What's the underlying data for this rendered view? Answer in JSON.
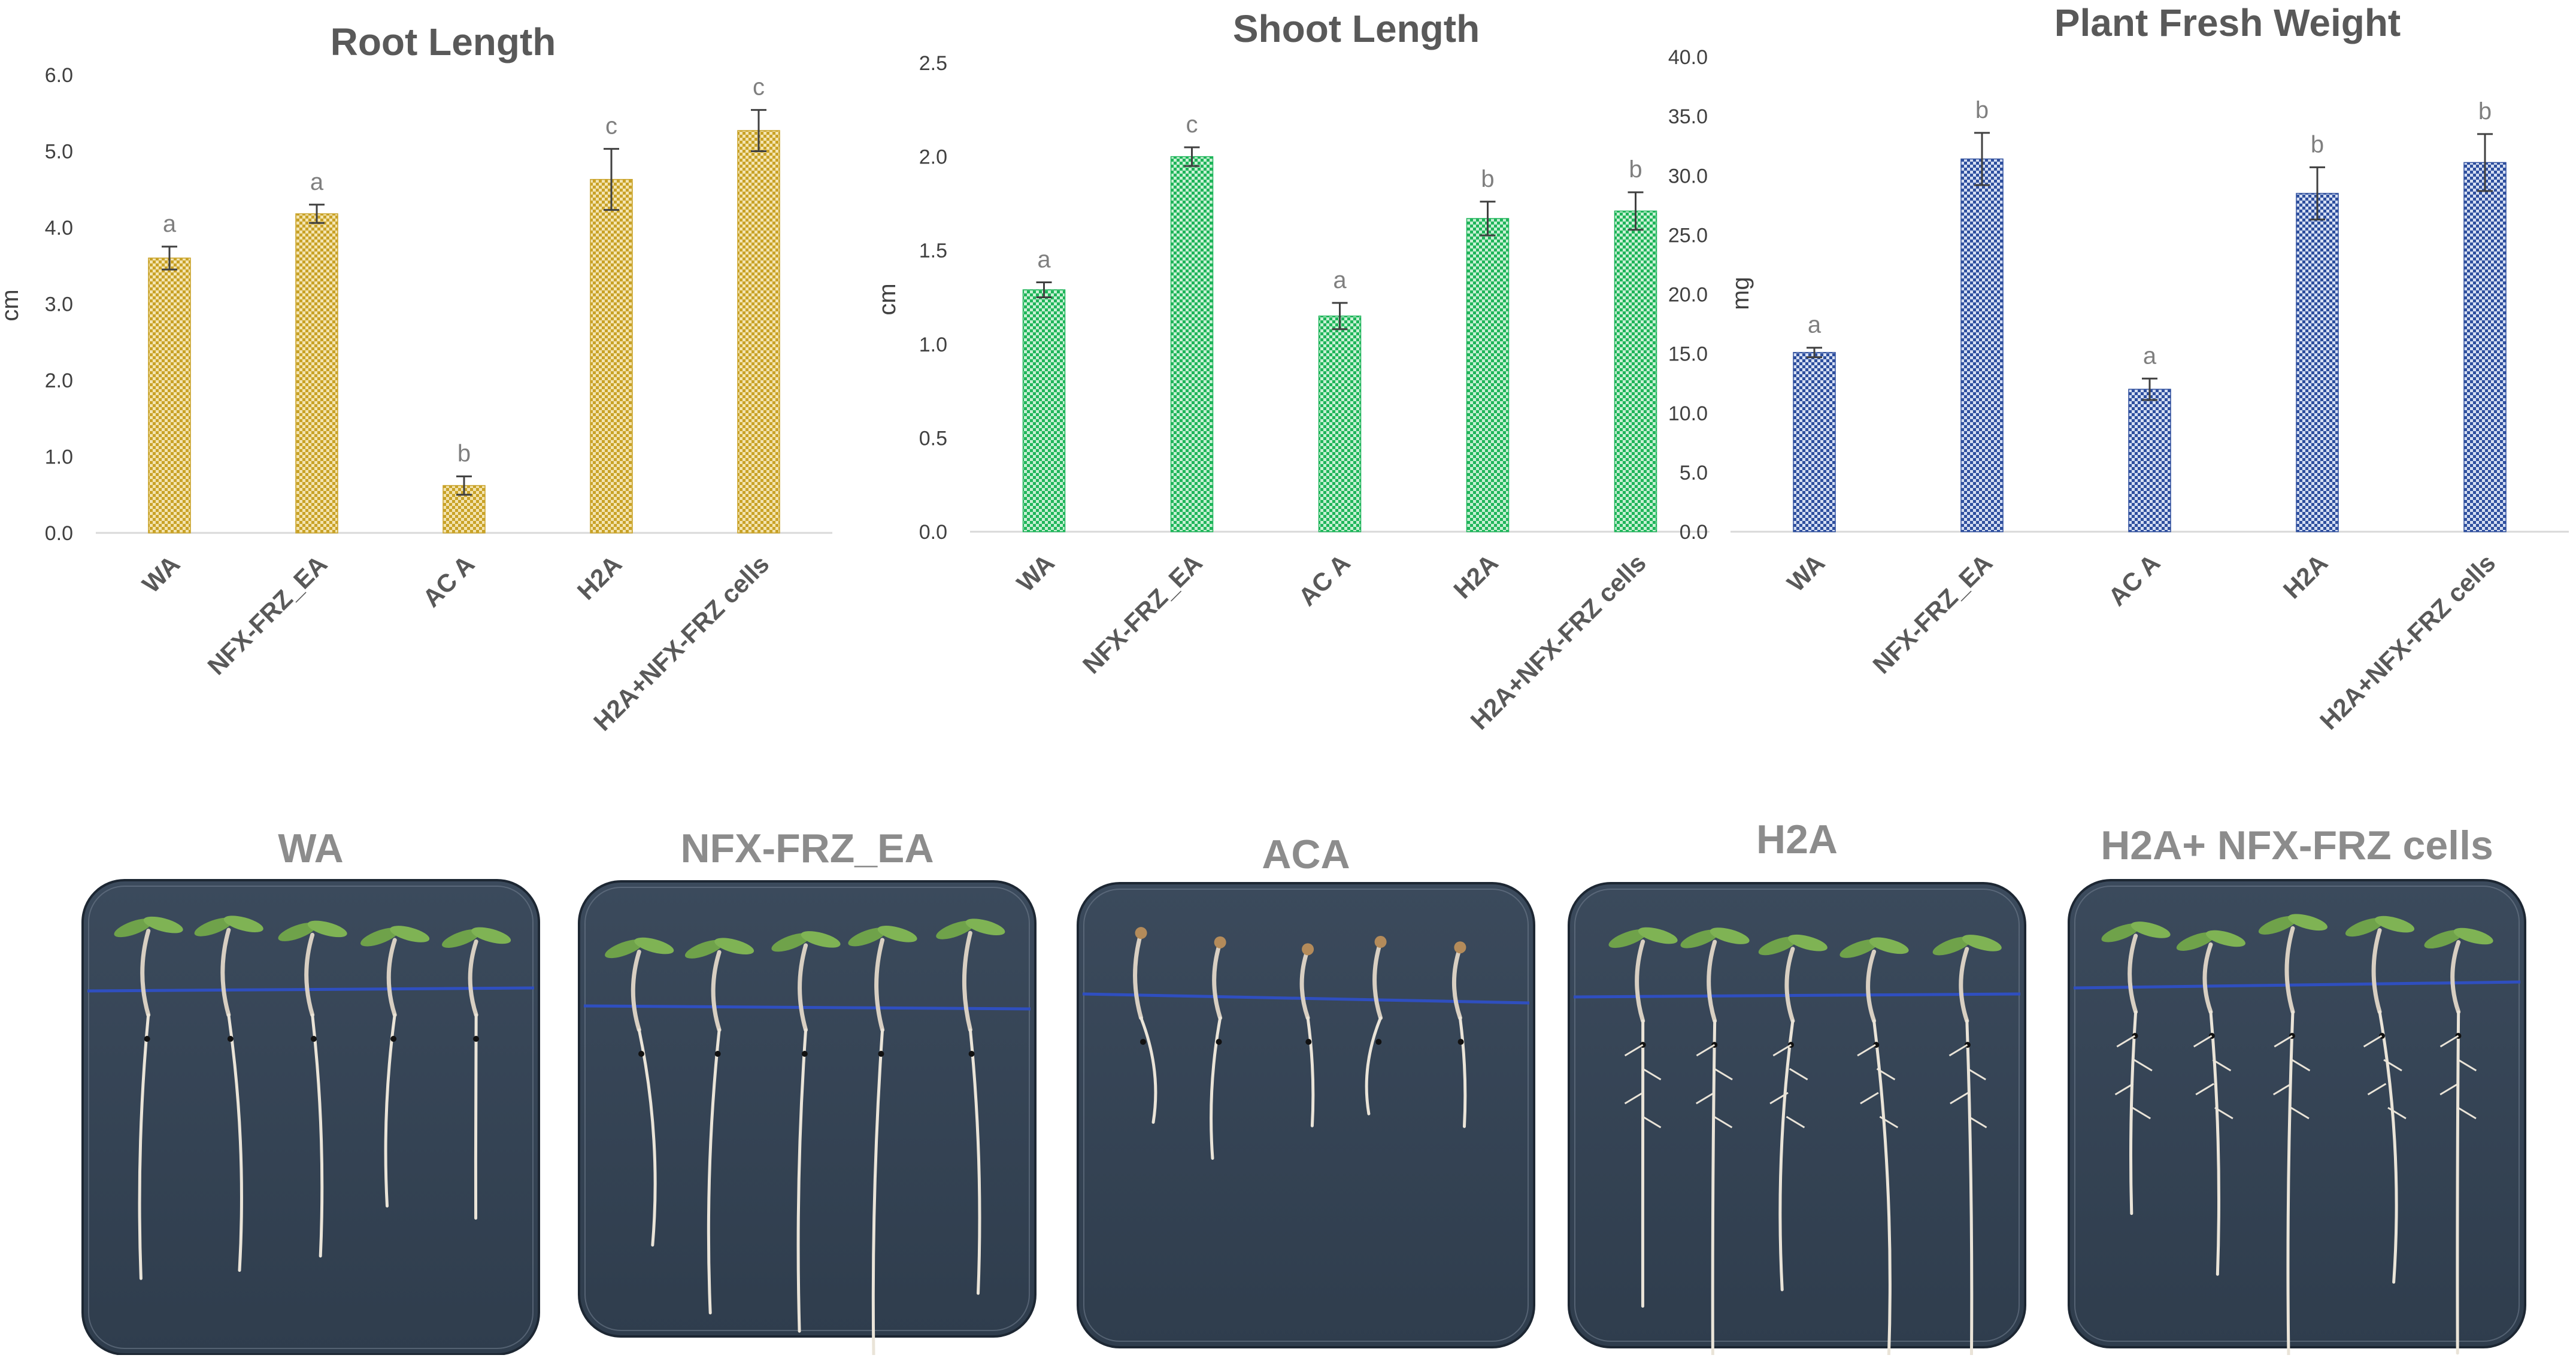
{
  "figure": {
    "panels": [
      {
        "title": "WA"
      },
      {
        "title": "NFX-FRZ_EA"
      },
      {
        "title": "ACA"
      },
      {
        "title": "H2A"
      },
      {
        "title": "H2A+ NFX-FRZ cells"
      }
    ]
  },
  "chart_data": [
    {
      "type": "bar",
      "title": "Root Length",
      "xlabel": "",
      "ylabel": "cm",
      "ylim": [
        0,
        6
      ],
      "yticks": [
        "0.0",
        "1.0",
        "2.0",
        "3.0",
        "4.0",
        "5.0",
        "6.0"
      ],
      "categories": [
        "WA",
        "NFX-FRZ_EA",
        "AC A",
        "H2A",
        "H2A+NFX-FRZ cells"
      ],
      "values": [
        3.6,
        4.18,
        0.62,
        4.63,
        5.27
      ],
      "errors": [
        0.15,
        0.12,
        0.12,
        0.4,
        0.27
      ],
      "letters": [
        "a",
        "a",
        "b",
        "c",
        "c"
      ],
      "color": "#c9a227",
      "grid": false
    },
    {
      "type": "bar",
      "title": "Shoot Length",
      "xlabel": "",
      "ylabel": "cm",
      "ylim": [
        0,
        2.5
      ],
      "yticks": [
        "0.0",
        "0.5",
        "1.0",
        "1.5",
        "2.0",
        "2.5"
      ],
      "categories": [
        "WA",
        "NFX-FRZ_EA",
        "AC A",
        "H2A",
        "H2A+NFX-FRZ cells"
      ],
      "values": [
        1.29,
        2.0,
        1.15,
        1.67,
        1.71
      ],
      "errors": [
        0.04,
        0.05,
        0.07,
        0.09,
        0.1
      ],
      "letters": [
        "a",
        "c",
        "a",
        "b",
        "b"
      ],
      "color": "#1fb55a",
      "grid": false
    },
    {
      "type": "bar",
      "title": "Plant Fresh Weight",
      "xlabel": "",
      "ylabel": "mg",
      "ylim": [
        0,
        40
      ],
      "yticks": [
        "0.0",
        "5.0",
        "10.0",
        "15.0",
        "20.0",
        "25.0",
        "30.0",
        "35.0",
        "40.0"
      ],
      "categories": [
        "WA",
        "NFX-FRZ_EA",
        "AC A",
        "H2A",
        "H2A+NFX-FRZ cells"
      ],
      "values": [
        15.1,
        31.4,
        12.0,
        28.5,
        31.1
      ],
      "errors": [
        0.4,
        2.2,
        0.9,
        2.2,
        2.4
      ],
      "letters": [
        "a",
        "b",
        "a",
        "b",
        "b"
      ],
      "color": "#2e4f9e",
      "grid": false
    }
  ]
}
